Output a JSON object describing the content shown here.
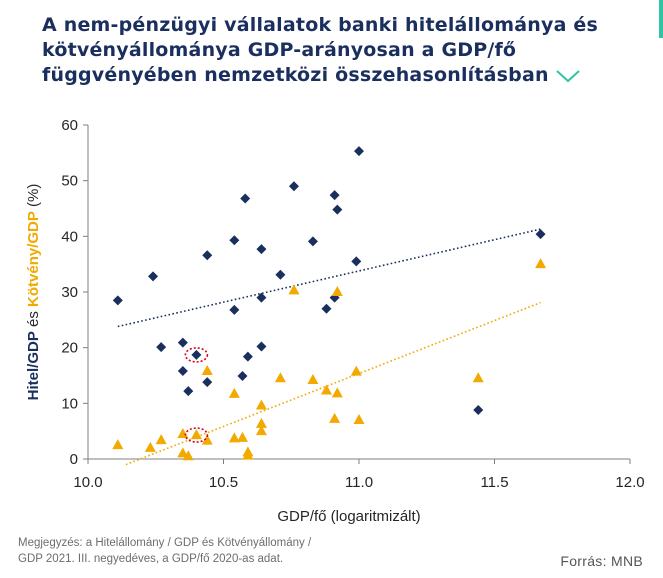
{
  "title_lines": [
    "A nem-pénzügyi vállalatok banki hitelállománya és",
    "kötvényállománya GDP-arányosan a GDP/fő",
    "függvényében nemzetközi összehasonlításban"
  ],
  "chevron_icon": "chevron-down-icon",
  "accent_color": "#2ec4a6",
  "note_lines": [
    "Megjegyzés: a Hitelállomány / GDP és Kötvényállomány /",
    "GDP 2021. III. negyedéves, a GDP/fő 2020-as adat."
  ],
  "source": "Forrás: MNB",
  "chart_data": {
    "type": "scatter",
    "xlabel": "GDP/fő (logaritmizált)",
    "ylabel_parts": [
      "Hitel/GDP",
      " és ",
      "Kötvény/GDP",
      " (%)"
    ],
    "xlim": [
      10.0,
      12.0
    ],
    "ylim": [
      0,
      60
    ],
    "xticks": [
      "10.0",
      "10.5",
      "11.0",
      "11.5",
      "12.0"
    ],
    "yticks": [
      "0",
      "10",
      "20",
      "30",
      "40",
      "50",
      "60"
    ],
    "grid": false,
    "legend": "none",
    "series": [
      {
        "marker": "diamond",
        "color": "#1b2f5e",
        "points": [
          [
            10.11,
            28.5
          ],
          [
            10.24,
            32.8
          ],
          [
            10.27,
            20.1
          ],
          [
            10.35,
            20.9
          ],
          [
            10.35,
            15.8
          ],
          [
            10.37,
            12.2
          ],
          [
            10.4,
            18.7
          ],
          [
            10.44,
            36.6
          ],
          [
            10.44,
            13.8
          ],
          [
            10.54,
            39.3
          ],
          [
            10.54,
            26.8
          ],
          [
            10.57,
            14.9
          ],
          [
            10.58,
            46.8
          ],
          [
            10.59,
            18.4
          ],
          [
            10.64,
            37.7
          ],
          [
            10.64,
            29.0
          ],
          [
            10.64,
            20.2
          ],
          [
            10.71,
            33.1
          ],
          [
            10.76,
            49.0
          ],
          [
            10.83,
            39.1
          ],
          [
            10.88,
            27.0
          ],
          [
            10.91,
            29.0
          ],
          [
            10.91,
            47.4
          ],
          [
            10.92,
            44.8
          ],
          [
            10.99,
            35.5
          ],
          [
            11.0,
            55.3
          ],
          [
            11.44,
            8.8
          ],
          [
            11.67,
            40.4
          ]
        ],
        "trend": [
          [
            10.11,
            23.8
          ],
          [
            11.67,
            41.3
          ]
        ]
      },
      {
        "marker": "triangle",
        "color": "#f2a900",
        "points": [
          [
            10.11,
            2.5
          ],
          [
            10.23,
            2.0
          ],
          [
            10.27,
            3.4
          ],
          [
            10.35,
            4.5
          ],
          [
            10.35,
            1.0
          ],
          [
            10.37,
            0.5
          ],
          [
            10.4,
            4.3
          ],
          [
            10.44,
            15.8
          ],
          [
            10.44,
            3.3
          ],
          [
            10.54,
            11.7
          ],
          [
            10.54,
            3.7
          ],
          [
            10.57,
            3.8
          ],
          [
            10.59,
            1.2
          ],
          [
            10.59,
            0.6
          ],
          [
            10.64,
            9.6
          ],
          [
            10.64,
            6.3
          ],
          [
            10.64,
            5.0
          ],
          [
            10.71,
            14.5
          ],
          [
            10.76,
            30.3
          ],
          [
            10.83,
            14.2
          ],
          [
            10.88,
            12.3
          ],
          [
            10.91,
            7.2
          ],
          [
            10.92,
            30.0
          ],
          [
            10.92,
            11.8
          ],
          [
            10.99,
            15.7
          ],
          [
            11.0,
            7.0
          ],
          [
            11.44,
            14.5
          ],
          [
            11.67,
            35.0
          ]
        ],
        "trend": [
          [
            10.14,
            -1.0
          ],
          [
            11.67,
            28.1
          ]
        ]
      }
    ],
    "highlighted_points": [
      [
        10.4,
        18.7
      ],
      [
        10.4,
        4.3
      ]
    ]
  }
}
